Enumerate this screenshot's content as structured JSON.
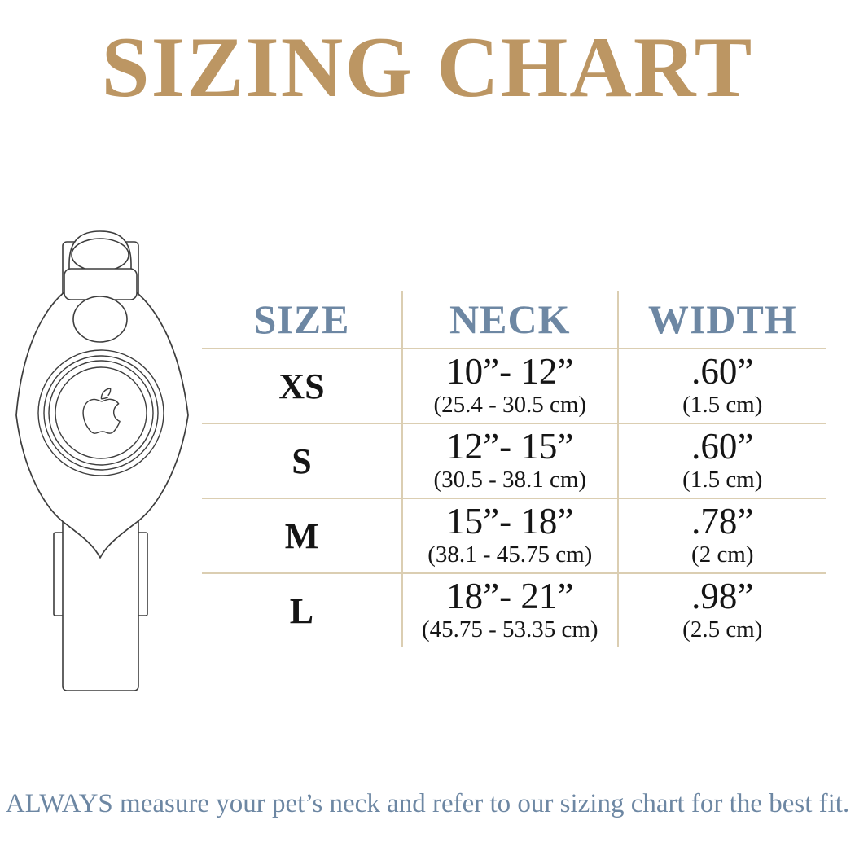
{
  "title": "SIZING CHART",
  "footnote": "ALWAYS measure your pet’s neck and refer to our sizing chart for the best fit.",
  "colors": {
    "title_gold": "#bc9663",
    "heading_blue": "#6d87a3",
    "table_line_tan": "#dbceb2",
    "text_ink": "#151515"
  },
  "illustration": {
    "name": "airtag-collar-line-drawing",
    "logo": "apple-logo"
  },
  "table": {
    "headers": [
      "SIZE",
      "NECK",
      "WIDTH"
    ],
    "rows": [
      {
        "size": "XS",
        "neck_in": "10”- 12”",
        "neck_cm": "(25.4 - 30.5 cm)",
        "width_in": ".60”",
        "width_cm": "(1.5 cm)"
      },
      {
        "size": "S",
        "neck_in": "12”- 15”",
        "neck_cm": "(30.5 - 38.1 cm)",
        "width_in": ".60”",
        "width_cm": "(1.5 cm)"
      },
      {
        "size": "M",
        "neck_in": "15”- 18”",
        "neck_cm": "(38.1 - 45.75 cm)",
        "width_in": ".78”",
        "width_cm": "(2 cm)"
      },
      {
        "size": "L",
        "neck_in": "18”- 21”",
        "neck_cm": "(45.75 - 53.35 cm)",
        "width_in": ".98”",
        "width_cm": "(2.5 cm)"
      }
    ]
  },
  "chart_data": {
    "type": "table",
    "title": "SIZING CHART",
    "columns": [
      "SIZE",
      "NECK",
      "WIDTH"
    ],
    "rows": [
      [
        "XS",
        "10”- 12” (25.4 - 30.5 cm)",
        ".60” (1.5 cm)"
      ],
      [
        "S",
        "12”- 15” (30.5 - 38.1 cm)",
        ".60” (1.5 cm)"
      ],
      [
        "M",
        "15”- 18” (38.1 - 45.75 cm)",
        ".78” (2 cm)"
      ],
      [
        "L",
        "18”- 21” (45.75 - 53.35 cm)",
        ".98” (2.5 cm)"
      ]
    ]
  }
}
